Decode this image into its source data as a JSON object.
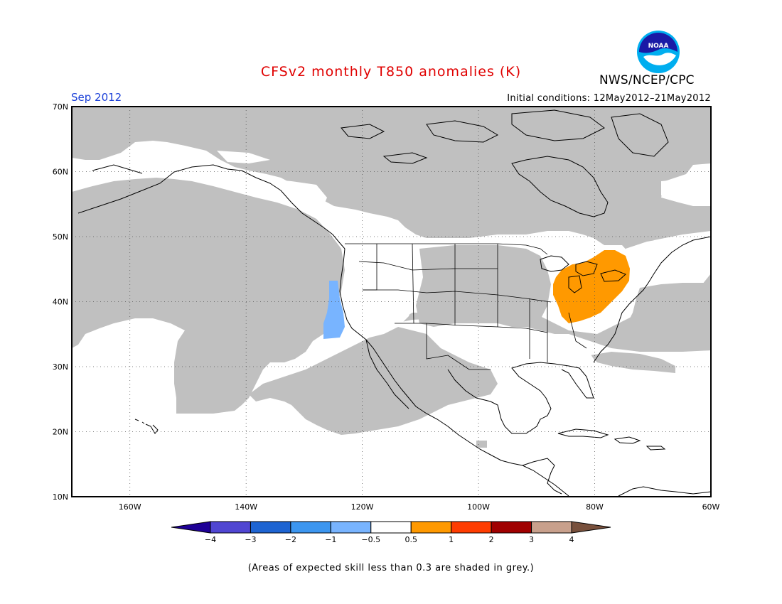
{
  "title": "CFSv2 monthly T850 anomalies (K)",
  "month": "Sep 2012",
  "initial_conditions": "Initial conditions: 12May2012–21May2012",
  "agency": "NWS/NCEP/CPC",
  "logo": {
    "text": "NOAA",
    "icon": "noaa-logo-icon"
  },
  "map": {
    "lat_labels": [
      "70N",
      "60N",
      "50N",
      "40N",
      "30N",
      "20N",
      "10N"
    ],
    "lat_values": [
      70,
      60,
      50,
      40,
      30,
      20,
      10
    ],
    "lon_labels": [
      "160W",
      "140W",
      "120W",
      "100W",
      "80W",
      "60W"
    ],
    "lon_values": [
      -160,
      -140,
      -120,
      -100,
      -80,
      -60
    ],
    "lon_range": [
      -170,
      -60
    ],
    "lat_range": [
      10,
      70
    ],
    "skill_mask_color": "#c0c0c0",
    "anomaly_regions": [
      {
        "name": "ohio-valley-great-lakes-warm",
        "category": "0.5 to 1",
        "color": "#ff9900"
      },
      {
        "name": "california-coast-cool",
        "category": "-1 to -0.5",
        "color": "#78b4ff"
      }
    ]
  },
  "colorbar": {
    "labels": [
      "−4",
      "−3",
      "−2",
      "−1",
      "−0.5",
      "0.5",
      "1",
      "2",
      "3",
      "4"
    ],
    "colors": [
      "#1e0096",
      "#5046d2",
      "#1e64d2",
      "#3c96f0",
      "#78b4ff",
      "#ffffff",
      "#ff9900",
      "#ff3c00",
      "#a00000",
      "#c8a08c",
      "#78503c"
    ]
  },
  "footnote": "(Areas of expected skill less than 0.3 are shaded in grey.)"
}
